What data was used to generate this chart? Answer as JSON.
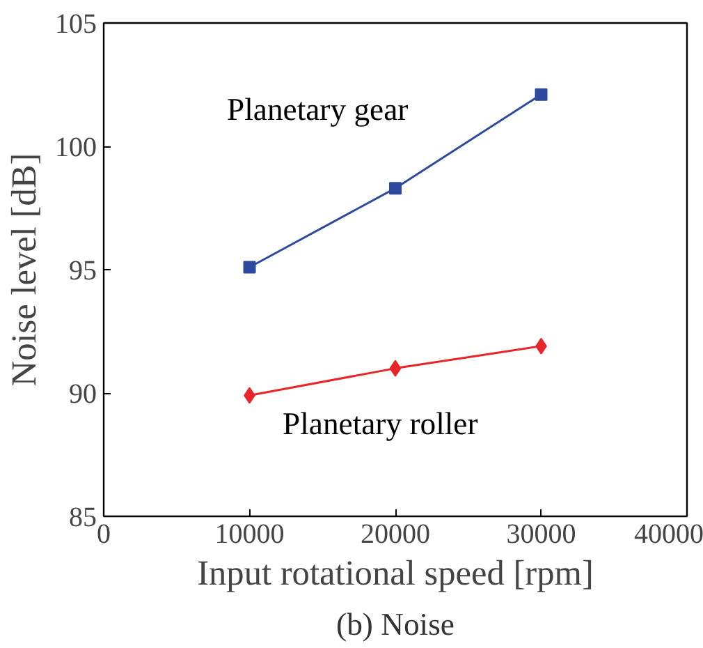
{
  "chart_data": {
    "type": "line",
    "title": "(b) Noise",
    "xlabel": "Input rotational speed [rpm]",
    "ylabel": "Noise level [dB]",
    "x": [
      10000,
      20000,
      30000
    ],
    "series": [
      {
        "name": "Planetary gear",
        "color": "#2e4a9e",
        "marker": "square",
        "values": [
          95.1,
          98.3,
          102.1
        ]
      },
      {
        "name": "Planetary roller",
        "color": "#e8262a",
        "marker": "diamond",
        "values": [
          89.9,
          91.0,
          91.9
        ]
      }
    ],
    "xlim": [
      0,
      40000
    ],
    "xticks": [
      0,
      10000,
      20000,
      30000,
      40000
    ],
    "ylim": [
      85,
      105
    ],
    "yticks": [
      85,
      90,
      95,
      100,
      105
    ],
    "grid": false
  }
}
